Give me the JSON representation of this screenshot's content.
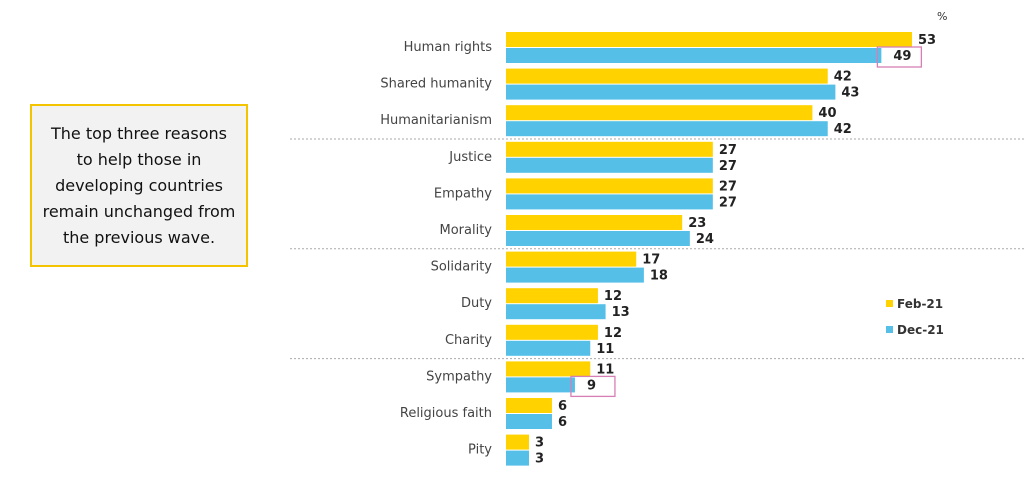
{
  "callout": "The top three reasons to help those in developing countries remain unchanged from the previous wave.",
  "chart_data": {
    "type": "bar",
    "orientation": "horizontal",
    "unit_label": "%",
    "categories": [
      "Human rights",
      "Shared humanity",
      "Humanitarianism",
      "Justice",
      "Empathy",
      "Morality",
      "Solidarity",
      "Duty",
      "Charity",
      "Sympathy",
      "Religious faith",
      "Pity"
    ],
    "series": [
      {
        "name": "Feb-21",
        "color": "#ffd200",
        "values": [
          53,
          42,
          40,
          27,
          27,
          23,
          17,
          12,
          12,
          11,
          6,
          3
        ]
      },
      {
        "name": "Dec-21",
        "color": "#55bfe8",
        "values": [
          49,
          43,
          42,
          27,
          27,
          24,
          18,
          13,
          11,
          9,
          6,
          3
        ]
      }
    ],
    "highlighted": [
      {
        "series": "Dec-21",
        "category": "Human rights"
      },
      {
        "series": "Dec-21",
        "category": "Sympathy"
      }
    ],
    "group_separators_after": [
      "Humanitarianism",
      "Morality",
      "Charity"
    ],
    "legend": "right",
    "xlim": [
      0,
      53
    ]
  }
}
